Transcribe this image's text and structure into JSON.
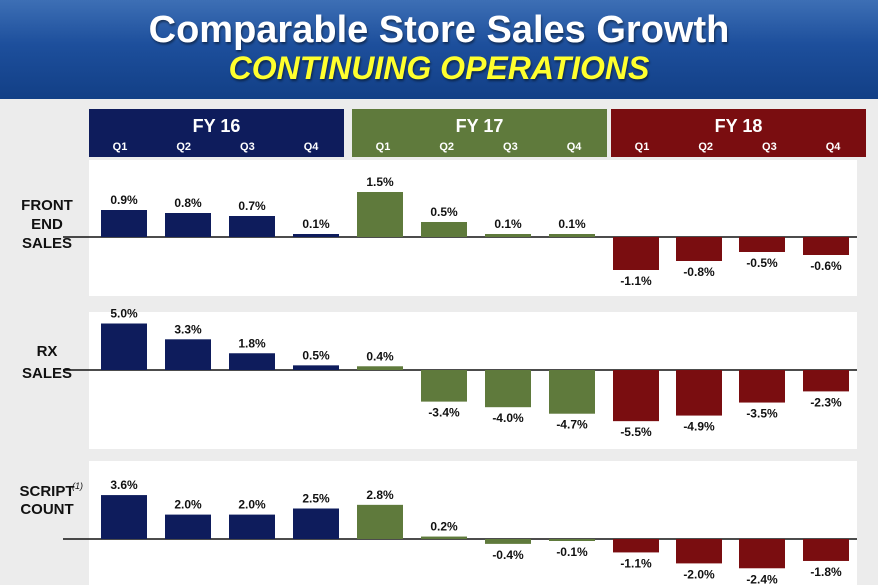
{
  "header": {
    "title": "Comparable Store Sales Growth",
    "subtitle": "CONTINUING OPERATIONS"
  },
  "colors": {
    "fy16": "#0e1c5c",
    "fy17": "#5f7a3c",
    "fy18": "#7a0d10",
    "background": "#ececec",
    "panel": "#ffffff"
  },
  "chart_data": {
    "type": "bar",
    "title": "Comparable Store Sales Growth",
    "subtitle": "CONTINUING OPERATIONS",
    "grid": false,
    "groups": [
      {
        "name": "FY 16",
        "quarters": [
          "Q1",
          "Q2",
          "Q3",
          "Q4"
        ]
      },
      {
        "name": "FY 17",
        "quarters": [
          "Q1",
          "Q2",
          "Q3",
          "Q4"
        ]
      },
      {
        "name": "FY 18",
        "quarters": [
          "Q1",
          "Q2",
          "Q3",
          "Q4"
        ]
      }
    ],
    "rows": [
      {
        "name": "FRONT END SALES",
        "label_lines": [
          "FRONT",
          "END",
          "SALES"
        ],
        "footnote": "",
        "values": [
          0.9,
          0.8,
          0.7,
          0.1,
          1.5,
          0.5,
          0.1,
          0.1,
          -1.1,
          -0.8,
          -0.5,
          -0.6
        ],
        "labels": [
          "0.9%",
          "0.8%",
          "0.7%",
          "0.1%",
          "1.5%",
          "0.5%",
          "0.1%",
          "0.1%",
          "-1.1%",
          "-0.8%",
          "-0.5%",
          "-0.6%"
        ]
      },
      {
        "name": "RX SALES",
        "label_lines": [
          "RX",
          "SALES"
        ],
        "footnote": "",
        "values": [
          5.0,
          3.3,
          1.8,
          0.5,
          0.4,
          -3.4,
          -4.0,
          -4.7,
          -5.5,
          -4.9,
          -3.5,
          -2.3
        ],
        "labels": [
          "5.0%",
          "3.3%",
          "1.8%",
          "0.5%",
          "0.4%",
          "-3.4%",
          "-4.0%",
          "-4.7%",
          "-5.5%",
          "-4.9%",
          "-3.5%",
          "-2.3%"
        ]
      },
      {
        "name": "SCRIPT COUNT",
        "label_lines": [
          "SCRIPT",
          "COUNT"
        ],
        "footnote": "(1)",
        "values": [
          3.6,
          2.0,
          2.0,
          2.5,
          2.8,
          0.2,
          -0.4,
          -0.1,
          -1.1,
          -2.0,
          -2.4,
          -1.8
        ],
        "labels": [
          "3.6%",
          "2.0%",
          "2.0%",
          "2.5%",
          "2.8%",
          "0.2%",
          "-0.4%",
          "-0.1%",
          "-1.1%",
          "-2.0%",
          "-2.4%",
          "-1.8%"
        ]
      }
    ]
  }
}
